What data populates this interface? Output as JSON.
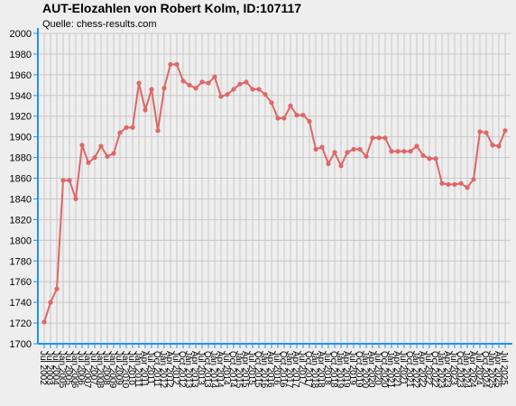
{
  "chart_data": {
    "type": "line",
    "title": "AUT-Elozahlen von Robert Kolm, ID:107117",
    "subtitle": "Quelle: chess-results.com",
    "categories": [
      "Jul 2002",
      "Jul 2003",
      "Jul 2004",
      "Jan 2005",
      "Jul 2005",
      "Jan 2006",
      "Jul 2006",
      "Jan 2007",
      "Jul 2007",
      "Jan 2008",
      "Jul 2008",
      "Jan 2009",
      "Jul 2009",
      "Jan 2010",
      "Jul 2010",
      "Jan 2011",
      "Apr 2011",
      "Jul 2011",
      "Oct 2011",
      "Jan 2012",
      "Apr 2012",
      "Jul 2012",
      "Oct 2012",
      "Jan 2013",
      "Apr 2013",
      "Jul 2013",
      "Oct 2013",
      "Jan 2014",
      "Apr 2014",
      "Jul 2014",
      "Oct 2014",
      "Jan 2015",
      "Apr 2015",
      "Jul 2015",
      "Oct 2015",
      "Jan 2016",
      "Apr 2016",
      "Jul 2016",
      "Oct 2016",
      "Jan 2017",
      "Apr 2017",
      "Jul 2017",
      "Oct 2017",
      "Jan 2018",
      "Apr 2018",
      "Jul 2018",
      "Oct 2018",
      "Jan 2019",
      "Apr 2019",
      "Jul 2019",
      "Oct 2019",
      "Jan 2020",
      "Apr 2020",
      "Jul 2020",
      "Oct 2020",
      "Jan 2021",
      "Apr 2021",
      "Jul 2021",
      "Oct 2021",
      "Jan 2022",
      "Apr 2022",
      "Jul 2022",
      "Oct 2022",
      "Jan 2023",
      "Apr 2023",
      "Jul 2023",
      "Oct 2023",
      "Jan 2024",
      "Apr 2024",
      "Jul 2024",
      "Oct 2024",
      "Jan 2025",
      "Apr 2025",
      "Jul 2025"
    ],
    "values": [
      1721,
      1740,
      1753,
      1858,
      1858,
      1840,
      1892,
      1875,
      1880,
      1891,
      1881,
      1884,
      1904,
      1909,
      1909,
      1952,
      1926,
      1946,
      1906,
      1947,
      1970,
      1970,
      1954,
      1950,
      1947,
      1953,
      1952,
      1958,
      1939,
      1941,
      1946,
      1951,
      1953,
      1946,
      1946,
      1941,
      1933,
      1918,
      1918,
      1930,
      1921,
      1921,
      1915,
      1888,
      1890,
      1874,
      1885,
      1872,
      1885,
      1888,
      1888,
      1881,
      1899,
      1899,
      1899,
      1886,
      1886,
      1886,
      1886,
      1891,
      1882,
      1879,
      1879,
      1855,
      1854,
      1854,
      1855,
      1851,
      1859,
      1905,
      1904,
      1892,
      1891,
      1906
    ],
    "color": "#e06666",
    "ylim": [
      1700,
      2000
    ],
    "yticks": [
      1700,
      1720,
      1740,
      1760,
      1780,
      1800,
      1820,
      1840,
      1860,
      1880,
      1900,
      1920,
      1940,
      1960,
      1980,
      2000
    ],
    "grid": true
  }
}
